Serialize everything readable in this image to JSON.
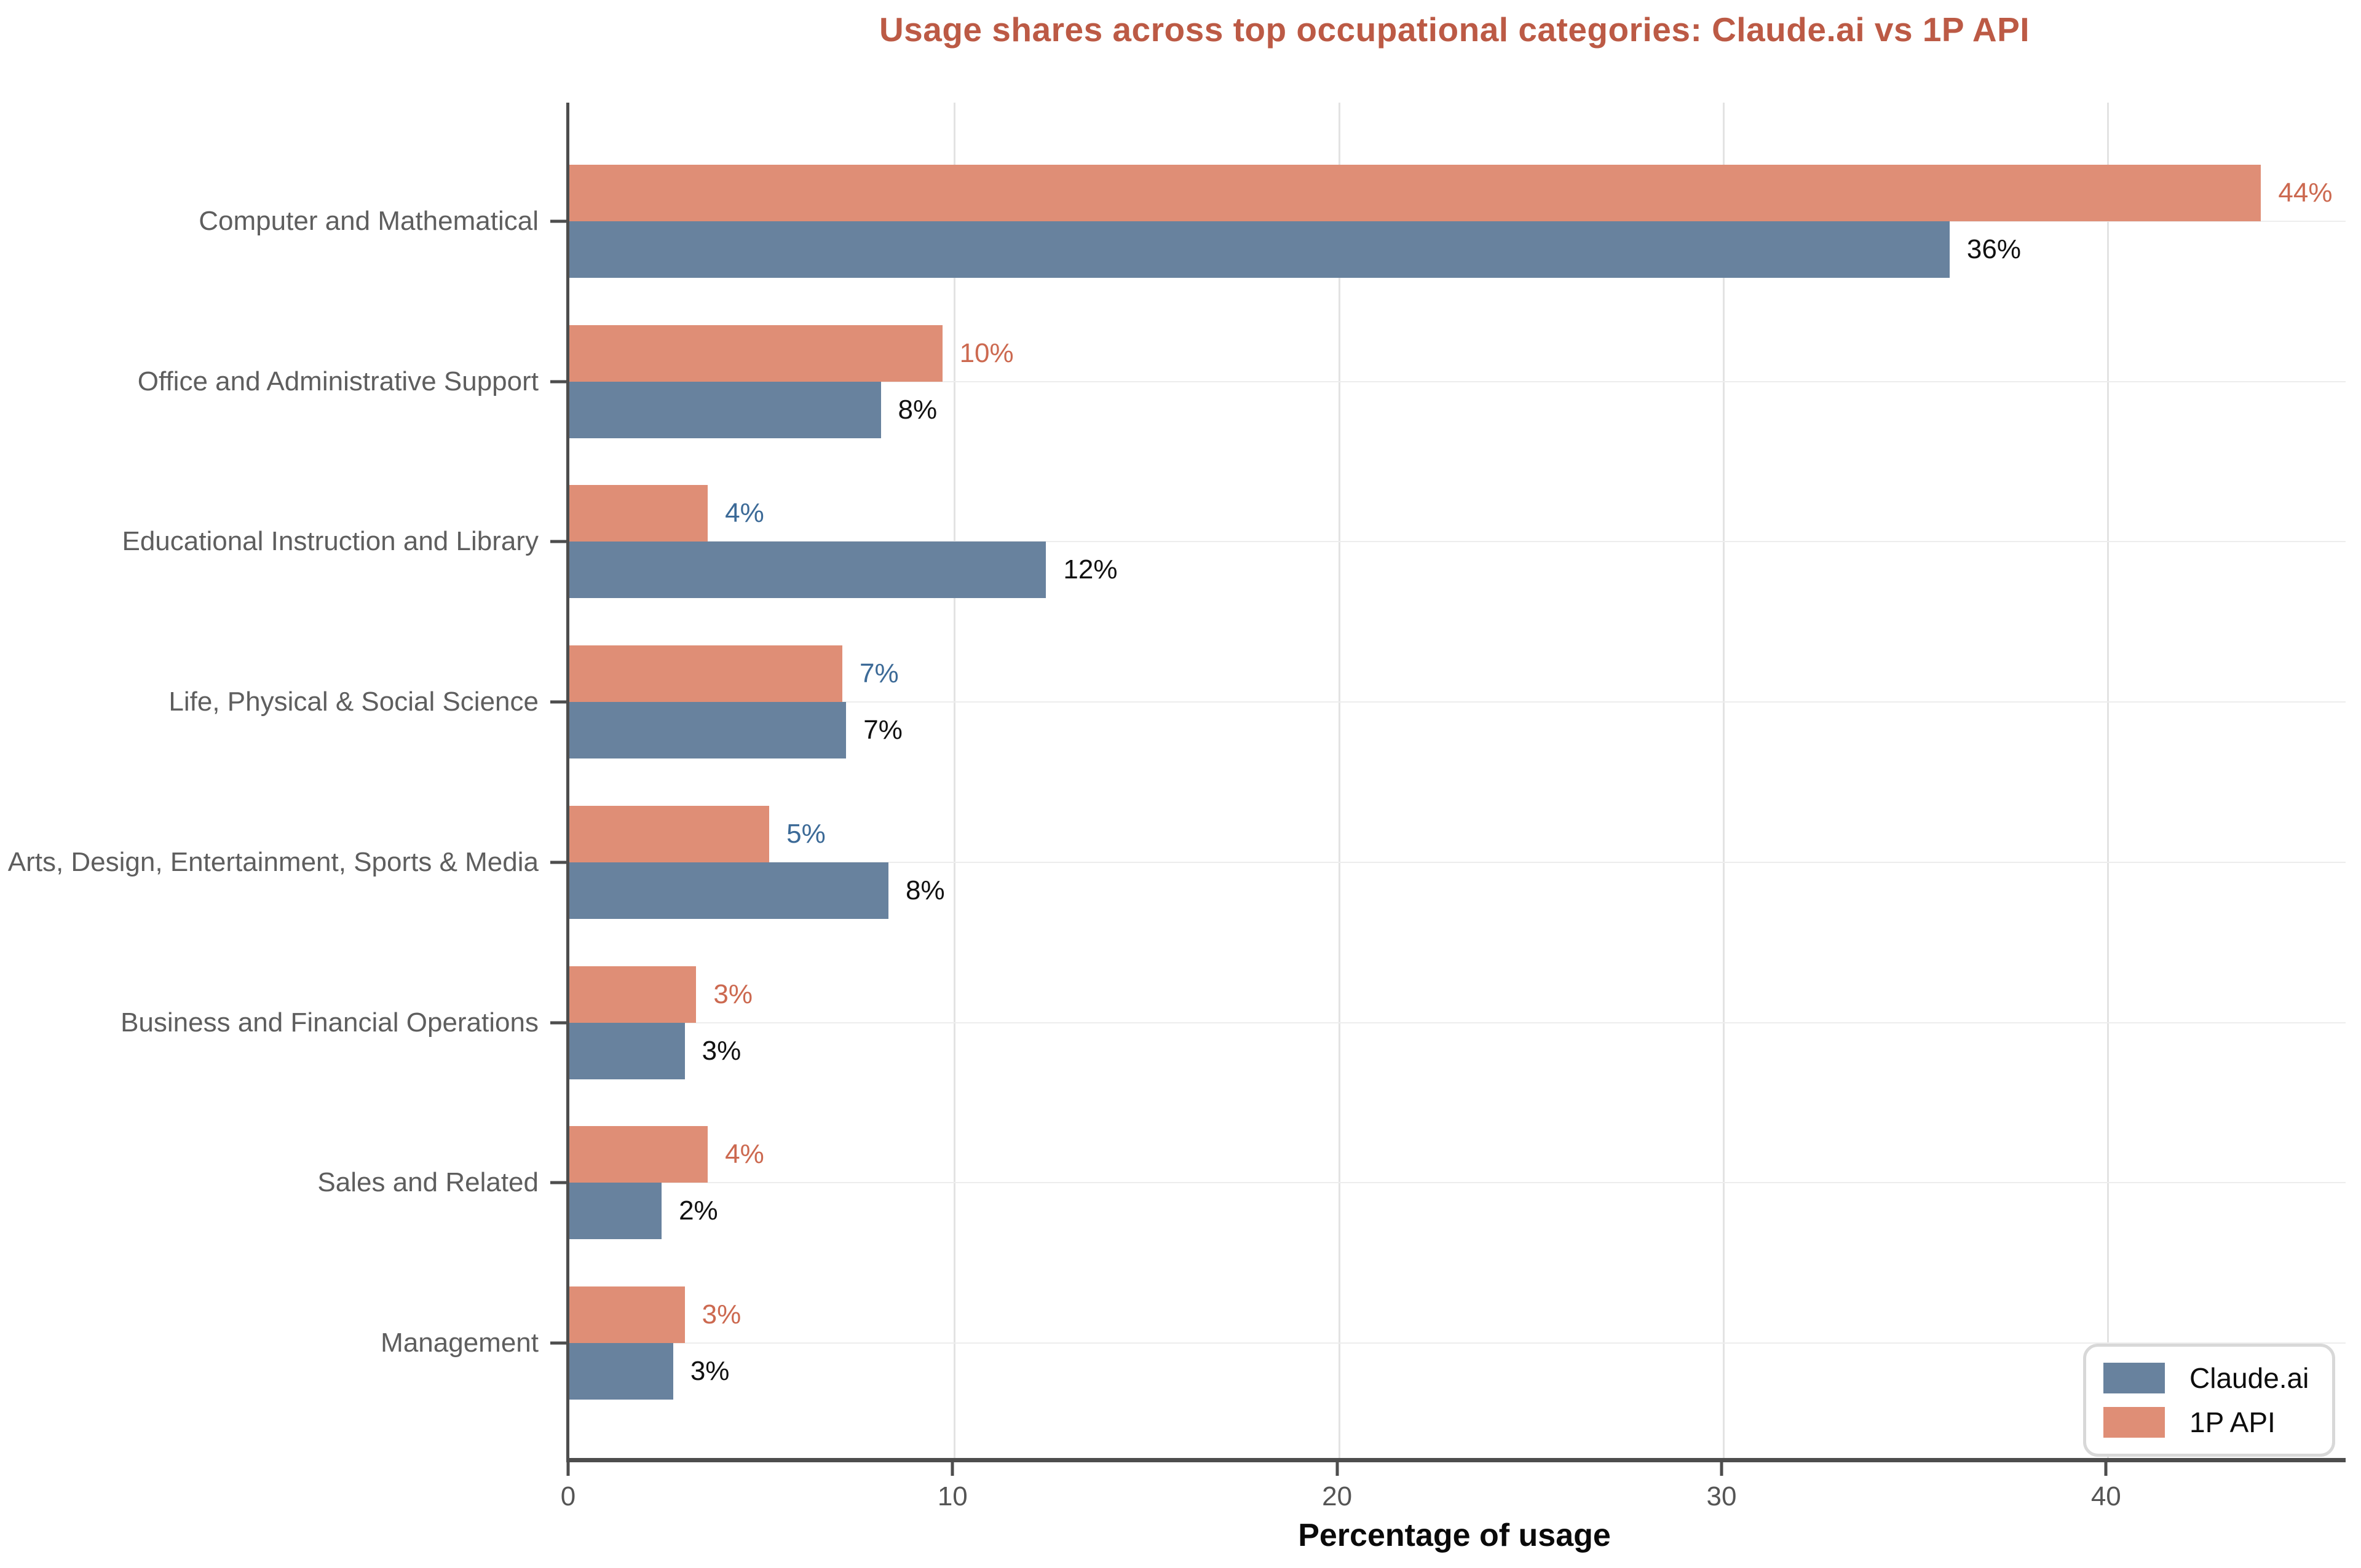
{
  "title": "Usage shares across top occupational categories: Claude.ai vs 1P API",
  "title_color": "#bc5a45",
  "legend": {
    "entries": [
      {
        "label": "Claude.ai",
        "color": "#68829e"
      },
      {
        "label": "1P API",
        "color": "#df8e76"
      }
    ]
  },
  "chart_data": {
    "type": "bar",
    "orientation": "horizontal",
    "title": "Usage shares across top occupational categories: Claude.ai vs 1P API",
    "xlabel": "Percentage of usage",
    "ylabel": "",
    "xlim": [
      0,
      46.2
    ],
    "xticks": [
      0,
      10,
      20,
      30,
      40
    ],
    "grid": "vertical gridlines at x ticks, light horizontal gridline at each category",
    "legend_position": "lower right",
    "categories": [
      "Computer and Mathematical",
      "Office and Administrative Support",
      "Educational Instruction and Library",
      "Life, Physical & Social Science",
      "Arts, Design, Entertainment, Sports & Media",
      "Business and Financial Operations",
      "Sales and Related",
      "Management"
    ],
    "series": [
      {
        "name": "1P API",
        "color": "#df8e76",
        "values": [
          44.0,
          9.7,
          3.6,
          7.1,
          5.2,
          3.3,
          3.6,
          3.0
        ],
        "labels": [
          "44%",
          "10%",
          "4%",
          "7%",
          "5%",
          "3%",
          "4%",
          "3%"
        ],
        "label_colors": [
          "#cc6950",
          "#cc6950",
          "#3c6a97",
          "#3c6a97",
          "#3c6a97",
          "#cc6950",
          "#cc6950",
          "#cc6950"
        ]
      },
      {
        "name": "Claude.ai",
        "color": "#68829e",
        "values": [
          35.9,
          8.1,
          12.4,
          7.2,
          8.3,
          3.0,
          2.4,
          2.7
        ],
        "labels": [
          "36%",
          "8%",
          "12%",
          "7%",
          "8%",
          "3%",
          "2%",
          "3%"
        ],
        "label_colors": [
          "#111111",
          "#111111",
          "#111111",
          "#111111",
          "#111111",
          "#111111",
          "#111111",
          "#111111"
        ]
      }
    ]
  }
}
